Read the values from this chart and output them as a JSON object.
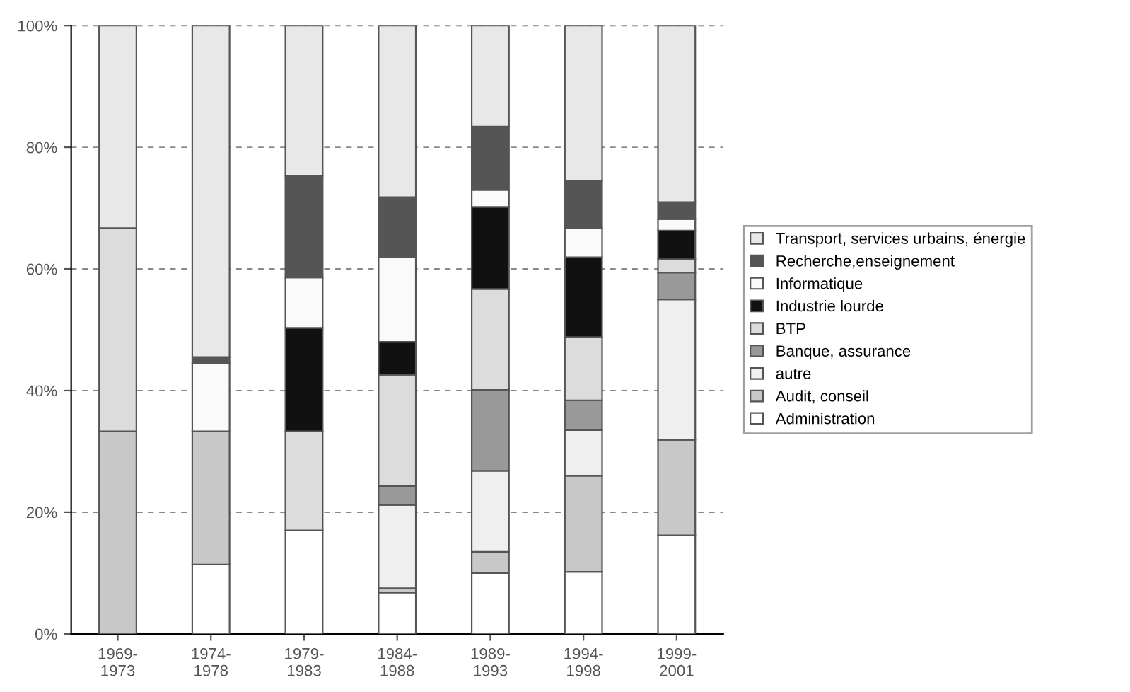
{
  "chart_data": {
    "type": "bar",
    "stacked": true,
    "categories": [
      "1969-\n1973",
      "1974-\n1978",
      "1979-\n1983",
      "1984-\n1988",
      "1989-\n1993",
      "1994-\n1998",
      "1999-\n2001"
    ],
    "series": [
      {
        "name": "Administration",
        "color": "#ffffff",
        "values": [
          null,
          11.4,
          17.0,
          6.8,
          10.0,
          10.2,
          16.2
        ]
      },
      {
        "name": "Audit, conseil",
        "color": "#c8c8c8",
        "values": [
          33.3,
          21.9,
          null,
          0.7,
          3.5,
          15.8,
          15.7
        ]
      },
      {
        "name": "autre",
        "color": "#efefef",
        "values": [
          null,
          null,
          null,
          13.7,
          13.3,
          7.5,
          23.1
        ]
      },
      {
        "name": "Banque, assurance",
        "color": "#999999",
        "values": [
          null,
          null,
          null,
          3.1,
          13.3,
          4.9,
          4.4
        ]
      },
      {
        "name": "BTP",
        "color": "#dcdcdc",
        "values": [
          33.4,
          null,
          16.3,
          18.3,
          16.6,
          10.4,
          2.2
        ]
      },
      {
        "name": "Industrie lourde",
        "color": "#111111",
        "values": [
          null,
          null,
          17.0,
          5.4,
          13.5,
          13.1,
          4.7
        ]
      },
      {
        "name": "Informatique",
        "color": "#fafafa",
        "values": [
          null,
          11.2,
          8.3,
          13.9,
          2.8,
          4.8,
          1.9
        ]
      },
      {
        "name": "Recherche,enseignement",
        "color": "#555555",
        "values": [
          null,
          1.0,
          16.7,
          9.9,
          10.4,
          7.8,
          2.8
        ]
      },
      {
        "name": "Transport, services urbains, énergie",
        "color": "#e8e8e8",
        "values": [
          33.3,
          54.5,
          24.7,
          28.2,
          16.6,
          25.5,
          29.0
        ]
      }
    ],
    "ylim": [
      0,
      100
    ],
    "yticks": [
      {
        "value": 0,
        "label": "0%"
      },
      {
        "value": 20,
        "label": "20%"
      },
      {
        "value": 40,
        "label": "40%"
      },
      {
        "value": 60,
        "label": "60%"
      },
      {
        "value": 80,
        "label": "80%"
      },
      {
        "value": 100,
        "label": "100%"
      }
    ],
    "grid": "y",
    "legend": "right"
  }
}
